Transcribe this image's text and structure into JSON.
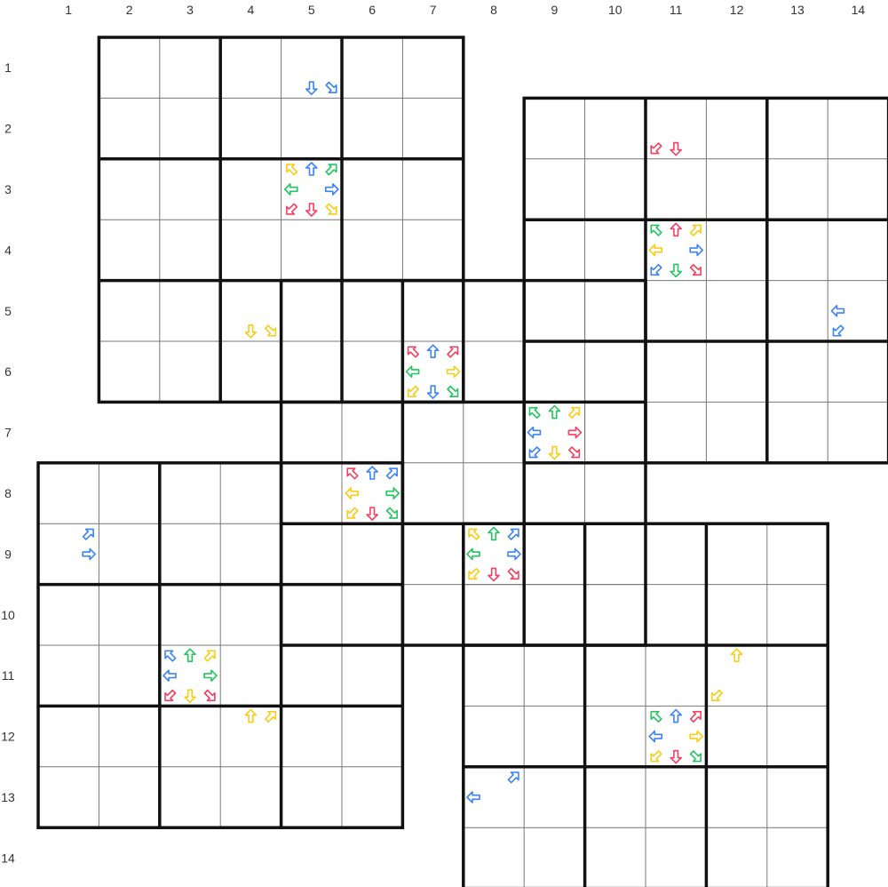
{
  "column_labels": [
    "1",
    "2",
    "3",
    "4",
    "5",
    "6",
    "7",
    "8",
    "9",
    "10",
    "11",
    "12",
    "13",
    "14"
  ],
  "row_labels": [
    "1",
    "2",
    "3",
    "4",
    "5",
    "6",
    "7",
    "8",
    "9",
    "10",
    "11",
    "12",
    "13",
    "14"
  ],
  "colors": {
    "blue": "#3b82f6",
    "green": "#22c55e",
    "red": "#f43f5e",
    "yellow": "#facc15",
    "grid_line": "#777777",
    "box_line": "#111111"
  },
  "grids": [
    {
      "name": "top-left",
      "col": 2,
      "row": 1
    },
    {
      "name": "top-right",
      "col": 9,
      "row": 2
    },
    {
      "name": "bottom-left",
      "col": 1,
      "row": 8
    },
    {
      "name": "bottom-right",
      "col": 8,
      "row": 9
    },
    {
      "name": "center",
      "col": 5,
      "row": 5
    }
  ],
  "arrow_cells": [
    {
      "col": 5,
      "row": 1,
      "arrows": {
        "s": "blue",
        "se": "blue"
      }
    },
    {
      "col": 5,
      "row": 3,
      "arrows": {
        "nw": "yellow",
        "n": "blue",
        "ne": "green",
        "w": "green",
        "e": "blue",
        "sw": "red",
        "s": "red",
        "se": "yellow"
      }
    },
    {
      "col": 11,
      "row": 2,
      "arrows": {
        "sw": "red",
        "s": "red"
      }
    },
    {
      "col": 11,
      "row": 4,
      "arrows": {
        "nw": "green",
        "n": "red",
        "ne": "yellow",
        "w": "yellow",
        "e": "blue",
        "sw": "blue",
        "s": "green",
        "se": "red"
      }
    },
    {
      "col": 14,
      "row": 5,
      "arrows": {
        "w": "blue",
        "sw": "blue"
      }
    },
    {
      "col": 4,
      "row": 5,
      "arrows": {
        "s": "yellow",
        "se": "yellow"
      }
    },
    {
      "col": 7,
      "row": 6,
      "arrows": {
        "nw": "red",
        "n": "blue",
        "ne": "red",
        "w": "green",
        "e": "yellow",
        "sw": "yellow",
        "s": "blue",
        "se": "green"
      }
    },
    {
      "col": 9,
      "row": 7,
      "arrows": {
        "nw": "green",
        "n": "green",
        "ne": "yellow",
        "w": "blue",
        "e": "red",
        "sw": "blue",
        "s": "yellow",
        "se": "red"
      }
    },
    {
      "col": 6,
      "row": 8,
      "arrows": {
        "nw": "red",
        "n": "blue",
        "ne": "blue",
        "w": "yellow",
        "e": "green",
        "sw": "yellow",
        "s": "red",
        "se": "green"
      }
    },
    {
      "col": 1,
      "row": 9,
      "arrows": {
        "ne": "blue",
        "e": "blue"
      }
    },
    {
      "col": 8,
      "row": 9,
      "arrows": {
        "nw": "yellow",
        "n": "green",
        "ne": "blue",
        "w": "green",
        "e": "blue",
        "sw": "yellow",
        "s": "red",
        "se": "red"
      }
    },
    {
      "col": 3,
      "row": 11,
      "arrows": {
        "nw": "blue",
        "n": "green",
        "ne": "yellow",
        "w": "blue",
        "e": "green",
        "sw": "red",
        "s": "yellow",
        "se": "red"
      }
    },
    {
      "col": 12,
      "row": 11,
      "arrows": {
        "n": "yellow",
        "sw": "yellow"
      }
    },
    {
      "col": 4,
      "row": 12,
      "arrows": {
        "n": "yellow",
        "ne": "yellow"
      }
    },
    {
      "col": 11,
      "row": 12,
      "arrows": {
        "nw": "green",
        "n": "blue",
        "ne": "red",
        "w": "blue",
        "e": "yellow",
        "sw": "yellow",
        "s": "red",
        "se": "green"
      }
    },
    {
      "col": 8,
      "row": 13,
      "arrows": {
        "ne": "blue",
        "w": "blue"
      }
    }
  ]
}
